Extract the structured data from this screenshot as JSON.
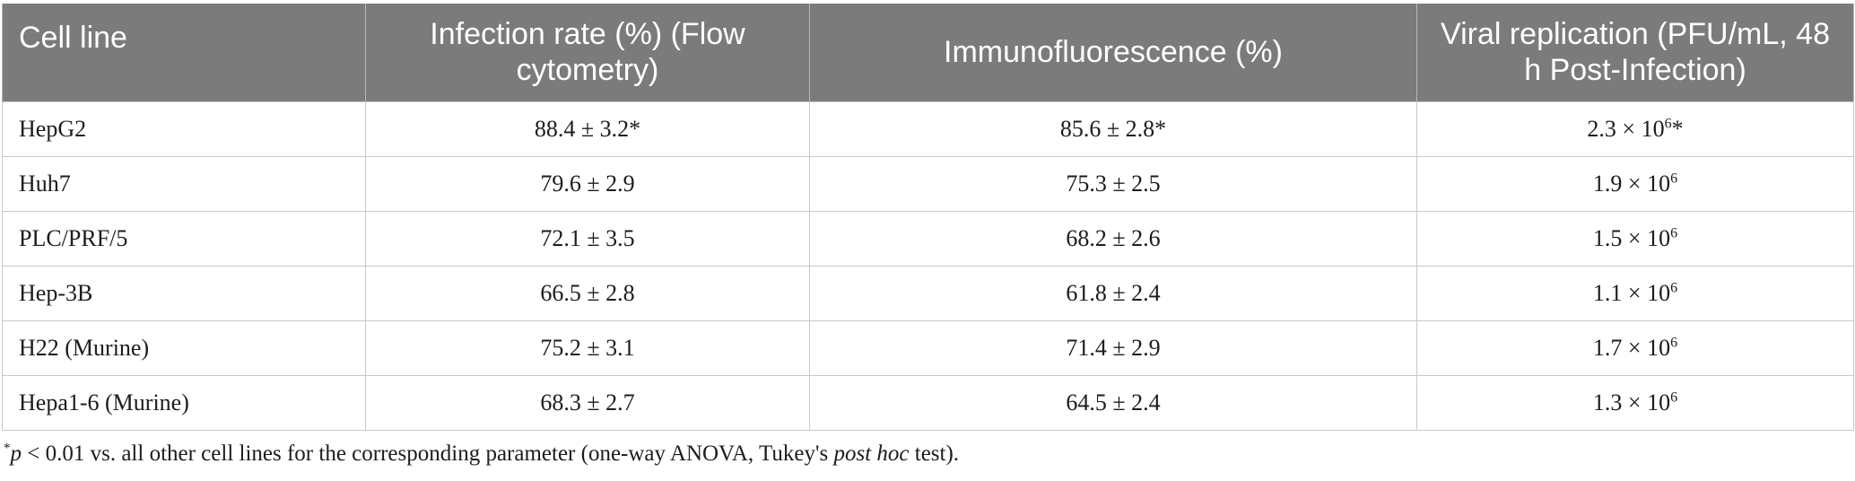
{
  "table": {
    "headers": [
      "Cell line",
      "Infection rate (%) (Flow cytometry)",
      "Immunofluorescence (%)",
      "Viral replication (PFU/mL, 48 h Post-Infection)"
    ],
    "rows": [
      {
        "cell_line": "HepG2",
        "infection_rate": "88.4 ± 3.2*",
        "immunofluorescence": "85.6 ± 2.8*",
        "viral_base": "2.3 × 10",
        "viral_exp": "6",
        "viral_suffix": "*"
      },
      {
        "cell_line": "Huh7",
        "infection_rate": "79.6 ± 2.9",
        "immunofluorescence": "75.3 ± 2.5",
        "viral_base": "1.9 × 10",
        "viral_exp": "6",
        "viral_suffix": ""
      },
      {
        "cell_line": "PLC/PRF/5",
        "infection_rate": "72.1 ± 3.5",
        "immunofluorescence": "68.2 ± 2.6",
        "viral_base": "1.5 × 10",
        "viral_exp": "6",
        "viral_suffix": ""
      },
      {
        "cell_line": "Hep-3B",
        "infection_rate": "66.5 ± 2.8",
        "immunofluorescence": "61.8 ± 2.4",
        "viral_base": "1.1 × 10",
        "viral_exp": "6",
        "viral_suffix": ""
      },
      {
        "cell_line": "H22 (Murine)",
        "infection_rate": "75.2 ± 3.1",
        "immunofluorescence": "71.4 ± 2.9",
        "viral_base": "1.7 × 10",
        "viral_exp": "6",
        "viral_suffix": ""
      },
      {
        "cell_line": "Hepa1-6 (Murine)",
        "infection_rate": "68.3 ± 2.7",
        "immunofluorescence": "64.5 ± 2.4",
        "viral_base": "1.3 × 10",
        "viral_exp": "6",
        "viral_suffix": ""
      }
    ]
  },
  "footnote": {
    "mark": "*",
    "p": "p",
    "text_a": " < 0.01 vs. all other cell lines for the corresponding parameter (one-way ANOVA, Tukey's ",
    "post_hoc": "post hoc",
    "text_b": " test)."
  },
  "colors": {
    "header_bg": "#7b7b7b",
    "header_text": "#ffffff",
    "grid": "#c8c8c8"
  }
}
